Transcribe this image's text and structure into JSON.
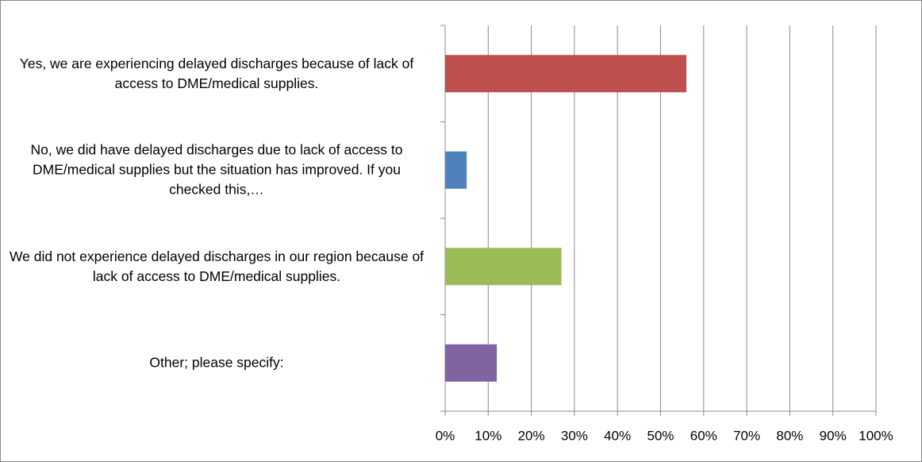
{
  "chart_data": {
    "type": "barh",
    "categories": [
      "Yes, we are experiencing delayed discharges because of lack of access to DME/medical supplies.",
      "No, we did have delayed discharges due to lack of access to DME/medical supplies but the situation has improved. If you checked this,…",
      "We did not experience delayed discharges in our region because of lack of access to DME/medical supplies.",
      "Other; please specify:"
    ],
    "values": [
      56,
      5,
      27,
      12
    ],
    "colors": [
      "#c0504d",
      "#4f81bd",
      "#9bbb59",
      "#8064a2"
    ],
    "xlim": [
      0,
      100
    ],
    "xticks": [
      {
        "value": 0,
        "label": "0%"
      },
      {
        "value": 10,
        "label": "10%"
      },
      {
        "value": 20,
        "label": "20%"
      },
      {
        "value": 30,
        "label": "30%"
      },
      {
        "value": 40,
        "label": "40%"
      },
      {
        "value": 50,
        "label": "50%"
      },
      {
        "value": 60,
        "label": "60%"
      },
      {
        "value": 70,
        "label": "70%"
      },
      {
        "value": 80,
        "label": "80%"
      },
      {
        "value": 90,
        "label": "90%"
      },
      {
        "value": 100,
        "label": "100%"
      }
    ],
    "grid": true
  }
}
